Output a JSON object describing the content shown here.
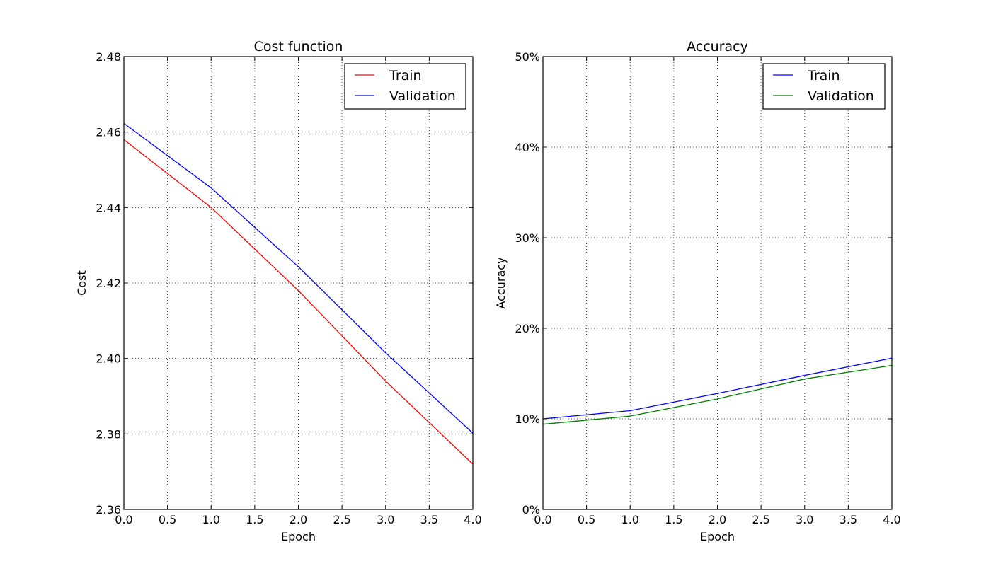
{
  "chart_data": [
    {
      "type": "line",
      "title": "Cost function",
      "xlabel": "Epoch",
      "ylabel": "Cost",
      "xlim": [
        0.0,
        4.0
      ],
      "ylim": [
        2.36,
        2.48
      ],
      "xticks": [
        0.0,
        0.5,
        1.0,
        1.5,
        2.0,
        2.5,
        3.0,
        3.5,
        4.0
      ],
      "xtick_labels": [
        "0.0",
        "0.5",
        "1.0",
        "1.5",
        "2.0",
        "2.5",
        "3.0",
        "3.5",
        "4.0"
      ],
      "yticks": [
        2.36,
        2.38,
        2.4,
        2.42,
        2.44,
        2.46,
        2.48
      ],
      "ytick_labels": [
        "2.36",
        "2.38",
        "2.40",
        "2.42",
        "2.44",
        "2.46",
        "2.48"
      ],
      "grid": true,
      "legend_position": "top-right",
      "x": [
        0,
        1,
        2,
        3,
        4
      ],
      "series": [
        {
          "name": "Train",
          "color": "#ff0000",
          "values": [
            2.458,
            2.44,
            2.418,
            2.394,
            2.372
          ]
        },
        {
          "name": "Validation",
          "color": "#0000ff",
          "values": [
            2.4623,
            2.4452,
            2.4243,
            2.4015,
            2.3802
          ]
        }
      ]
    },
    {
      "type": "line",
      "title": "Accuracy",
      "xlabel": "Epoch",
      "ylabel": "Accuracy",
      "xlim": [
        0.0,
        4.0
      ],
      "ylim": [
        0,
        50
      ],
      "xticks": [
        0.0,
        0.5,
        1.0,
        1.5,
        2.0,
        2.5,
        3.0,
        3.5,
        4.0
      ],
      "xtick_labels": [
        "0.0",
        "0.5",
        "1.0",
        "1.5",
        "2.0",
        "2.5",
        "3.0",
        "3.5",
        "4.0"
      ],
      "yticks": [
        0,
        10,
        20,
        30,
        40,
        50
      ],
      "ytick_labels": [
        "0%",
        "10%",
        "20%",
        "30%",
        "40%",
        "50%"
      ],
      "grid": true,
      "legend_position": "top-right",
      "x": [
        0,
        1,
        2,
        3,
        4
      ],
      "series": [
        {
          "name": "Train",
          "color": "#0000ff",
          "values": [
            10.0,
            10.9,
            12.8,
            14.8,
            16.7
          ]
        },
        {
          "name": "Validation",
          "color": "#008000",
          "values": [
            9.4,
            10.3,
            12.2,
            14.4,
            15.9
          ]
        }
      ]
    }
  ]
}
